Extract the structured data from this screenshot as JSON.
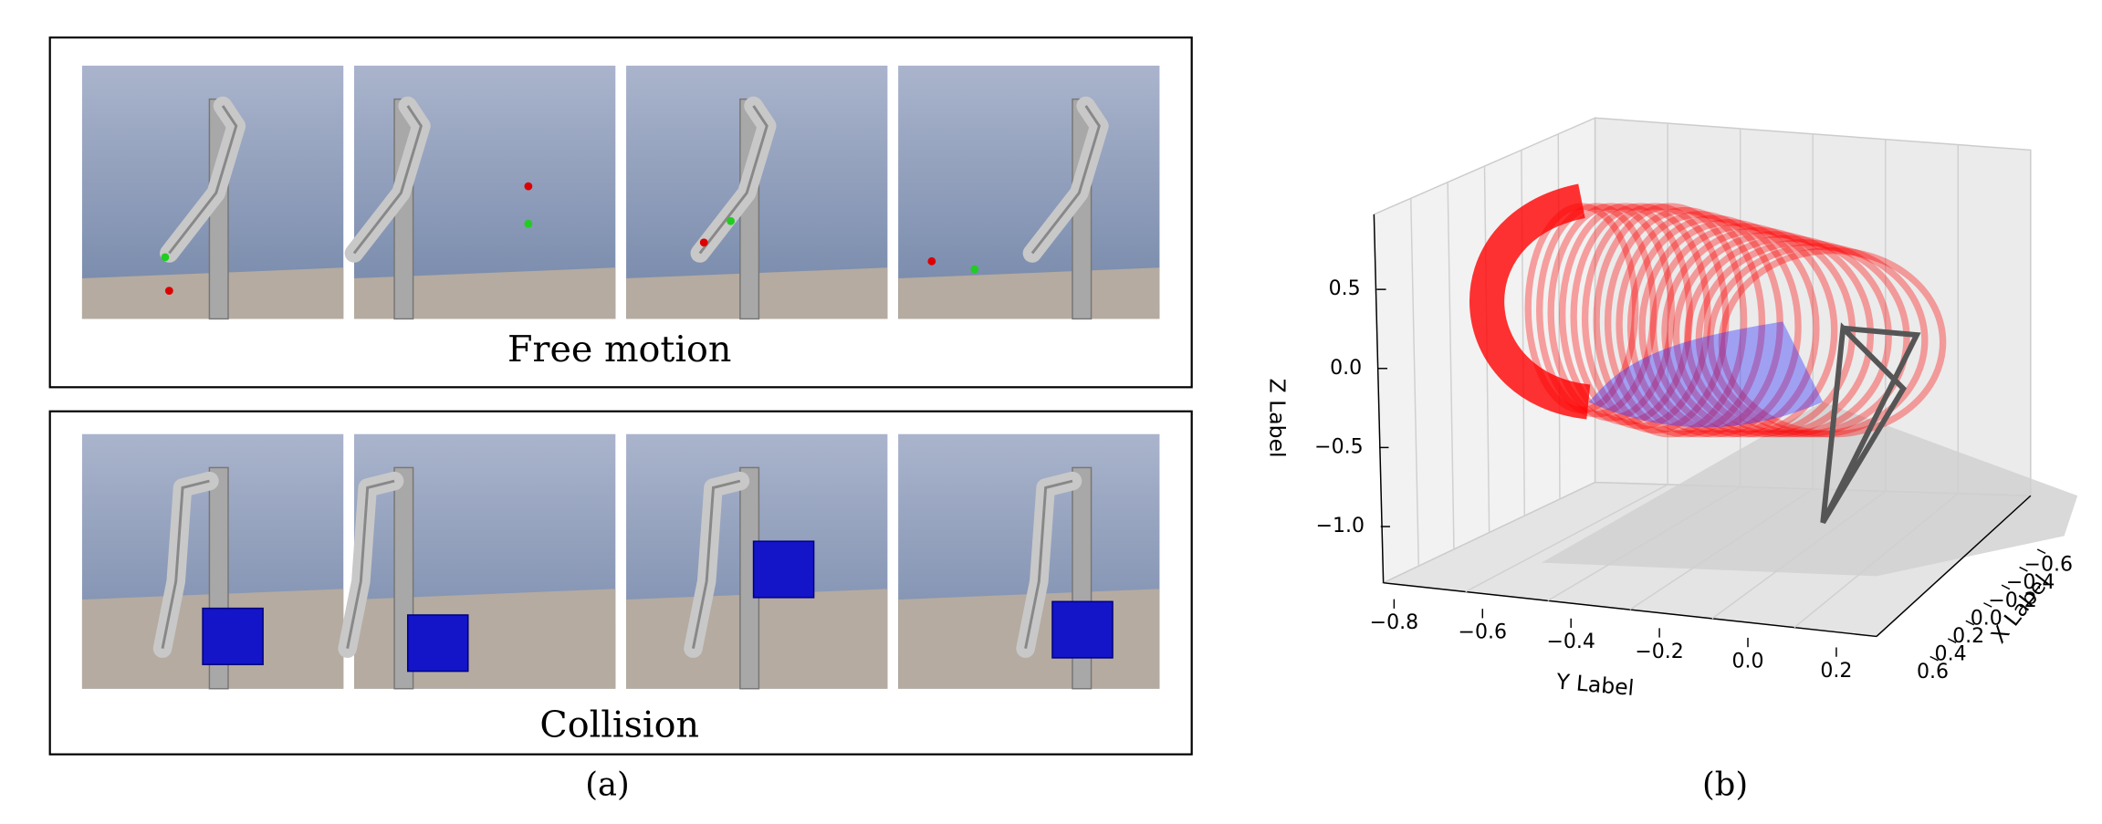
{
  "panel_a": {
    "rows": [
      {
        "label": "Free motion"
      },
      {
        "label": "Collision"
      }
    ],
    "caption": "(a)"
  },
  "panel_b": {
    "caption": "(b)",
    "z_label": "Z Label",
    "y_label": "Y Label",
    "x_label": "X Label",
    "z_ticks": [
      0.5,
      {
        "value": 0,
        "label": "0.0"
      },
      {
        "value": -0.5,
        "label": "−0.5"
      },
      {
        "value": -1.0,
        "label": "−1.0"
      }
    ],
    "y_ticks": [
      {
        "value": -0.8,
        "label": "−0.8"
      },
      {
        "value": -0.6,
        "label": "−0.6"
      },
      {
        "value": -0.4,
        "label": "−0.4"
      },
      {
        "value": -0.2,
        "label": "−0.2"
      },
      {
        "value": 0,
        "label": "0.0"
      },
      0.2
    ],
    "x_ticks": [
      0.6,
      0.4,
      0.2,
      {
        "value": 0,
        "label": "0.0"
      },
      {
        "value": -0.2,
        "label": "−0.2"
      },
      {
        "value": -0.4,
        "label": "−0.4"
      },
      {
        "value": -0.6,
        "label": "−0.6"
      }
    ]
  }
}
